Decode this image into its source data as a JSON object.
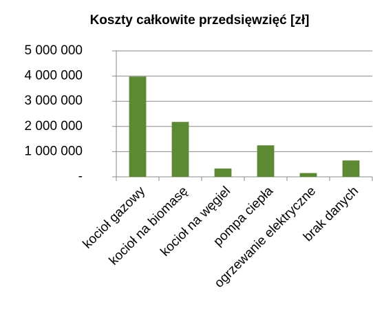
{
  "chart_data": {
    "type": "bar",
    "title": "Koszty całkowite przedsięwzięć [zł]",
    "categories": [
      "kocioł gazowy",
      "kocioł na biomasę",
      "kocioł na węgiel",
      "pompa ciepła",
      "ogrzewanie elektryczne",
      "brak danych"
    ],
    "values": [
      3980000,
      2180000,
      330000,
      1250000,
      150000,
      650000
    ],
    "color": "#5b8a32",
    "ylim": [
      0,
      5000000
    ],
    "yticks": [
      {
        "value": 0,
        "label": "-"
      },
      {
        "value": 1000000,
        "label": "1 000 000"
      },
      {
        "value": 2000000,
        "label": "2 000 000"
      },
      {
        "value": 3000000,
        "label": "3 000 000"
      },
      {
        "value": 4000000,
        "label": "4 000 000"
      },
      {
        "value": 5000000,
        "label": "5 000 000"
      }
    ],
    "grid": true
  }
}
